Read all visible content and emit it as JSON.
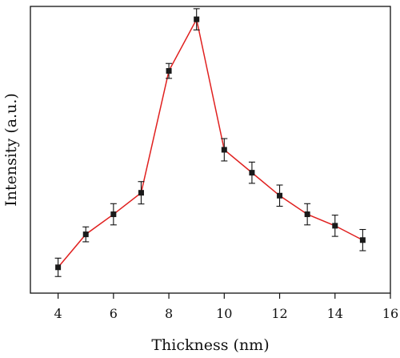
{
  "chart_data": {
    "type": "line",
    "xlabel": "Thickness (nm)",
    "ylabel": "Intensity (a.u.)",
    "xlim": [
      3,
      16
    ],
    "ylim": [
      0,
      100
    ],
    "x_ticks": [
      4,
      6,
      8,
      10,
      12,
      14,
      16
    ],
    "y_ticks_shown": false,
    "grid": false,
    "line_color": "#e0201f",
    "marker_color": "#1a1a1a",
    "series": [
      {
        "x": [
          4,
          5,
          6,
          7,
          8,
          9,
          10,
          11,
          12,
          13,
          14,
          15
        ],
        "y": [
          9.0,
          20.5,
          27.5,
          35.0,
          77.5,
          95.5,
          50.0,
          42.0,
          34.0,
          27.5,
          23.5,
          18.5
        ],
        "error": [
          3.2,
          2.6,
          3.7,
          3.9,
          2.6,
          3.7,
          3.9,
          3.7,
          3.7,
          3.7,
          3.7,
          3.7
        ]
      }
    ]
  }
}
